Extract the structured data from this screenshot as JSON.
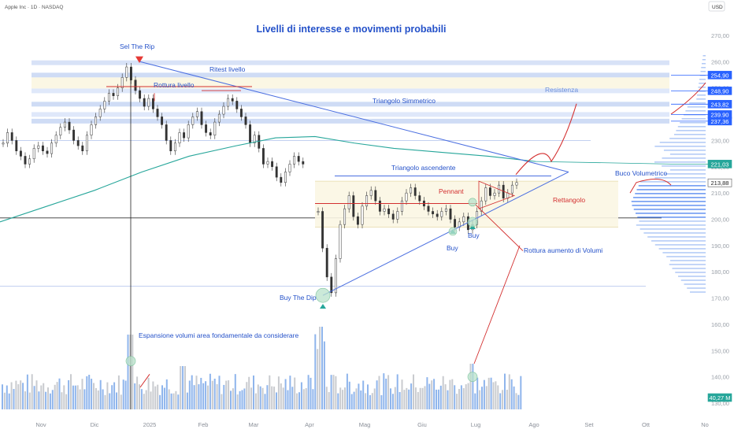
{
  "header": {
    "symbol": "Apple Inc · 1D · NASDAQ",
    "currency": "USD"
  },
  "chart_data": {
    "type": "candlestick",
    "title": "Livelli di interesse e movimenti probabili",
    "y_ticks": [
      270,
      260,
      250,
      240,
      230,
      220,
      210,
      200,
      190,
      180,
      170,
      160,
      150,
      140,
      130
    ],
    "ylim": [
      120,
      277
    ],
    "x_ticks": [
      "Nov",
      "Dic",
      "2025",
      "Feb",
      "Mar",
      "Apr",
      "Mag",
      "Giu",
      "Lug",
      "Ago",
      "Set",
      "Ott",
      "No"
    ],
    "price_tags": [
      {
        "value": "254,90",
        "color": "#2962ff"
      },
      {
        "value": "248,90",
        "color": "#2962ff"
      },
      {
        "value": "243,82",
        "color": "#2962ff"
      },
      {
        "value": "239,90",
        "color": "#2962ff"
      },
      {
        "value": "237,36",
        "color": "#2962ff"
      },
      {
        "value": "221,03",
        "color": "#26a69a"
      },
      {
        "value": "213,88",
        "color": "#ffffff"
      },
      {
        "value": "40,27 M",
        "color": "#26a69a"
      }
    ],
    "annotations": {
      "sell_the_rip": "Sel The Rip",
      "ritest": "Ritest livello",
      "rottura": "Rottura livello",
      "triangolo_simm": "Triangolo Simmetrico",
      "resistenza": "Resistenza",
      "triangolo_asc": "Triangolo ascendente",
      "pennant": "Pennant",
      "rettangolo": "Rettangolo",
      "buco": "Buco Volumetrico",
      "buy_dip": "Buy The Dip",
      "buy1": "Buy",
      "buy2": "Buy",
      "rottura_vol": "Rottura aumento di Volumi",
      "espansione": "Espansione volumi area fondamentale da considerare"
    },
    "horizontal_levels": [
      254.9,
      248.9,
      243.82,
      239.9,
      237.36
    ],
    "moving_average_last": 221.03,
    "last_price": 213.88,
    "volume_last": "40,27 M",
    "series": [
      {
        "name": "price",
        "close": [
          229,
          233,
          230,
          226,
          224,
          221,
          223,
          227,
          228,
          226,
          225,
          229,
          232,
          235,
          237,
          234,
          230,
          228,
          226,
          232,
          236,
          239,
          242,
          245,
          248,
          247,
          250,
          254,
          258,
          253,
          249,
          246,
          243,
          246,
          242,
          239,
          236,
          230,
          226,
          229,
          233,
          231,
          236,
          239,
          241,
          236,
          233,
          232,
          237,
          240,
          243,
          246,
          245,
          242,
          239,
          236,
          229,
          232,
          227,
          221,
          222,
          220,
          216,
          214,
          218,
          221,
          224,
          222,
          221
        ]
      },
      {
        "name": "price2",
        "close": [
          203,
          189,
          178,
          172,
          185,
          198,
          204,
          209,
          201,
          198,
          205,
          209,
          211,
          207,
          203,
          204,
          202,
          200,
          203,
          207,
          210,
          212,
          209,
          207,
          205,
          203,
          202,
          201,
          203,
          204,
          200,
          197,
          199,
          201,
          196,
          198,
          203,
          207,
          212,
          209,
          210,
          213,
          208,
          210,
          213,
          214
        ]
      }
    ]
  }
}
